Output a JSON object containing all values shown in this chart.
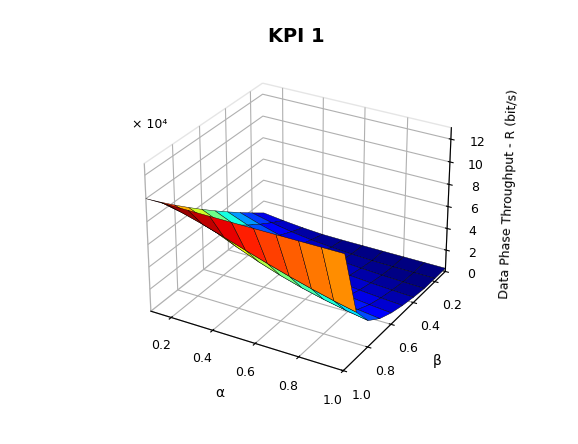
{
  "title": "KPI 1",
  "xlabel": "α",
  "ylabel": "β",
  "zlabel": "Data Phase Throughput - R (bit/s)",
  "alpha_range": [
    0.1,
    0.2,
    0.3,
    0.4,
    0.5,
    0.6,
    0.7,
    0.8,
    0.9,
    1.0
  ],
  "beta_range": [
    0.1,
    0.2,
    0.3,
    0.4,
    0.5,
    0.6,
    0.7,
    0.8,
    0.9,
    1.0
  ],
  "zlim": [
    0,
    130000
  ],
  "zticks": [
    0,
    20000,
    40000,
    60000,
    80000,
    100000,
    120000
  ],
  "ztick_labels": [
    "0",
    "2",
    "4",
    "6",
    "8",
    "10",
    "12"
  ],
  "z_scale_label": "× 10⁴",
  "xticks": [
    0.2,
    0.4,
    0.6,
    0.8,
    1.0
  ],
  "yticks": [
    0.2,
    0.4,
    0.6,
    0.8,
    1.0
  ],
  "colormap": "jet",
  "title_fontsize": 14,
  "label_fontsize": 10,
  "tick_fontsize": 9,
  "elev": 28,
  "azim": -60
}
